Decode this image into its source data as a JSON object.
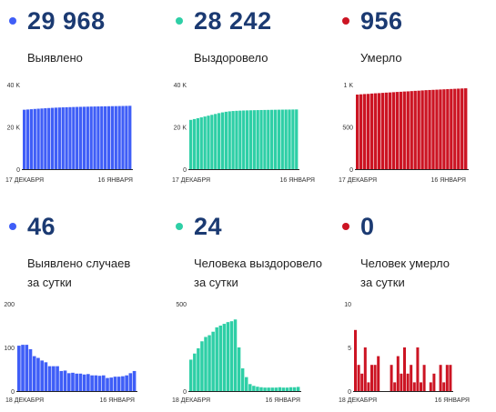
{
  "colors": {
    "blue": "#3f5ef7",
    "green": "#2ecfa6",
    "red": "#cc1423",
    "number": "#1b3a72",
    "axis": "#222222",
    "tick": "#333333"
  },
  "cards": [
    {
      "number": "29 968",
      "label_line1": "Выявлено",
      "label_line2": "",
      "color": "#3f5ef7"
    },
    {
      "number": "28 242",
      "label_line1": "Выздоровело",
      "label_line2": "",
      "color": "#2ecfa6"
    },
    {
      "number": "956",
      "label_line1": "Умерло",
      "label_line2": "",
      "color": "#cc1423"
    },
    {
      "number": "46",
      "label_line1": "Выявлено случаев",
      "label_line2": "за сутки",
      "color": "#3f5ef7"
    },
    {
      "number": "24",
      "label_line1": "Человека выздоровело",
      "label_line2": "за сутки",
      "color": "#2ecfa6"
    },
    {
      "number": "0",
      "label_line1": "Человек умерло",
      "label_line2": "за сутки",
      "color": "#cc1423"
    }
  ],
  "chart_data": [
    {
      "type": "bar",
      "color": "#3f5ef7",
      "yticks": [
        0,
        20000,
        40000
      ],
      "ytick_labels": [
        "0",
        "20 K",
        "40 K"
      ],
      "ylim": [
        0,
        40000
      ],
      "x_start_label": "17 ДЕКАБРЯ",
      "x_end_label": "16 ЯНВАРЯ",
      "values": [
        28100,
        28220,
        28350,
        28480,
        28590,
        28700,
        28810,
        28910,
        29000,
        29090,
        29160,
        29230,
        29290,
        29340,
        29390,
        29440,
        29480,
        29520,
        29560,
        29600,
        29640,
        29670,
        29700,
        29730,
        29760,
        29790,
        29820,
        29850,
        29880,
        29920,
        29968
      ]
    },
    {
      "type": "bar",
      "color": "#2ecfa6",
      "yticks": [
        0,
        20000,
        40000
      ],
      "ytick_labels": [
        "0",
        "20 K",
        "40 K"
      ],
      "ylim": [
        0,
        40000
      ],
      "x_start_label": "17 ДЕКАБРЯ",
      "x_end_label": "16 ЯНВАРЯ",
      "values": [
        23300,
        23700,
        24100,
        24500,
        24900,
        25300,
        25700,
        26100,
        26500,
        26850,
        27150,
        27350,
        27500,
        27600,
        27680,
        27750,
        27800,
        27850,
        27890,
        27930,
        27970,
        28000,
        28030,
        28060,
        28090,
        28120,
        28150,
        28170,
        28190,
        28218,
        28242
      ]
    },
    {
      "type": "bar",
      "color": "#cc1423",
      "yticks": [
        0,
        500,
        1000
      ],
      "ytick_labels": [
        "0",
        "500",
        "1 K"
      ],
      "ylim": [
        0,
        1000
      ],
      "x_start_label": "17 ДЕКАБРЯ",
      "x_end_label": "16 ЯНВАРЯ",
      "values": [
        882,
        885,
        888,
        890,
        894,
        897,
        899,
        902,
        905,
        907,
        910,
        913,
        915,
        918,
        920,
        923,
        926,
        928,
        931,
        934,
        936,
        938,
        940,
        942,
        944,
        946,
        948,
        950,
        952,
        954,
        956
      ]
    },
    {
      "type": "bar",
      "color": "#3f5ef7",
      "yticks": [
        0,
        100,
        200
      ],
      "ytick_labels": [
        "0",
        "100",
        "200"
      ],
      "ylim": [
        0,
        200
      ],
      "x_start_label": "18 ДЕКАБРЯ",
      "x_end_label": "16 ЯНВАРЯ",
      "values": [
        104,
        106,
        106,
        96,
        80,
        76,
        70,
        66,
        57,
        57,
        57,
        46,
        47,
        41,
        42,
        40,
        40,
        38,
        39,
        36,
        36,
        35,
        36,
        30,
        31,
        33,
        33,
        34,
        36,
        41,
        46
      ]
    },
    {
      "type": "bar",
      "color": "#2ecfa6",
      "yticks": [
        0,
        500
      ],
      "ytick_labels": [
        "0",
        "500"
      ],
      "ylim": [
        0,
        500
      ],
      "x_start_label": "18 ДЕКАБРЯ",
      "x_end_label": "16 ЯНВАРЯ",
      "values": [
        180,
        215,
        245,
        285,
        310,
        320,
        340,
        365,
        375,
        385,
        395,
        400,
        410,
        250,
        130,
        80,
        40,
        30,
        25,
        22,
        20,
        20,
        20,
        20,
        22,
        20,
        20,
        22,
        22,
        24
      ]
    },
    {
      "type": "bar",
      "color": "#cc1423",
      "yticks": [
        0,
        5,
        10
      ],
      "ytick_labels": [
        "0",
        "5",
        "10"
      ],
      "ylim": [
        0,
        10
      ],
      "x_start_label": "18 ДЕКАБРЯ",
      "x_end_label": "16 ЯНВАРЯ",
      "values": [
        7,
        3,
        2,
        5,
        1,
        3,
        3,
        4,
        0,
        0,
        0,
        3,
        1,
        4,
        2,
        5,
        2,
        3,
        1,
        5,
        1,
        3,
        0,
        1,
        2,
        0,
        3,
        1,
        3,
        3
      ]
    }
  ]
}
